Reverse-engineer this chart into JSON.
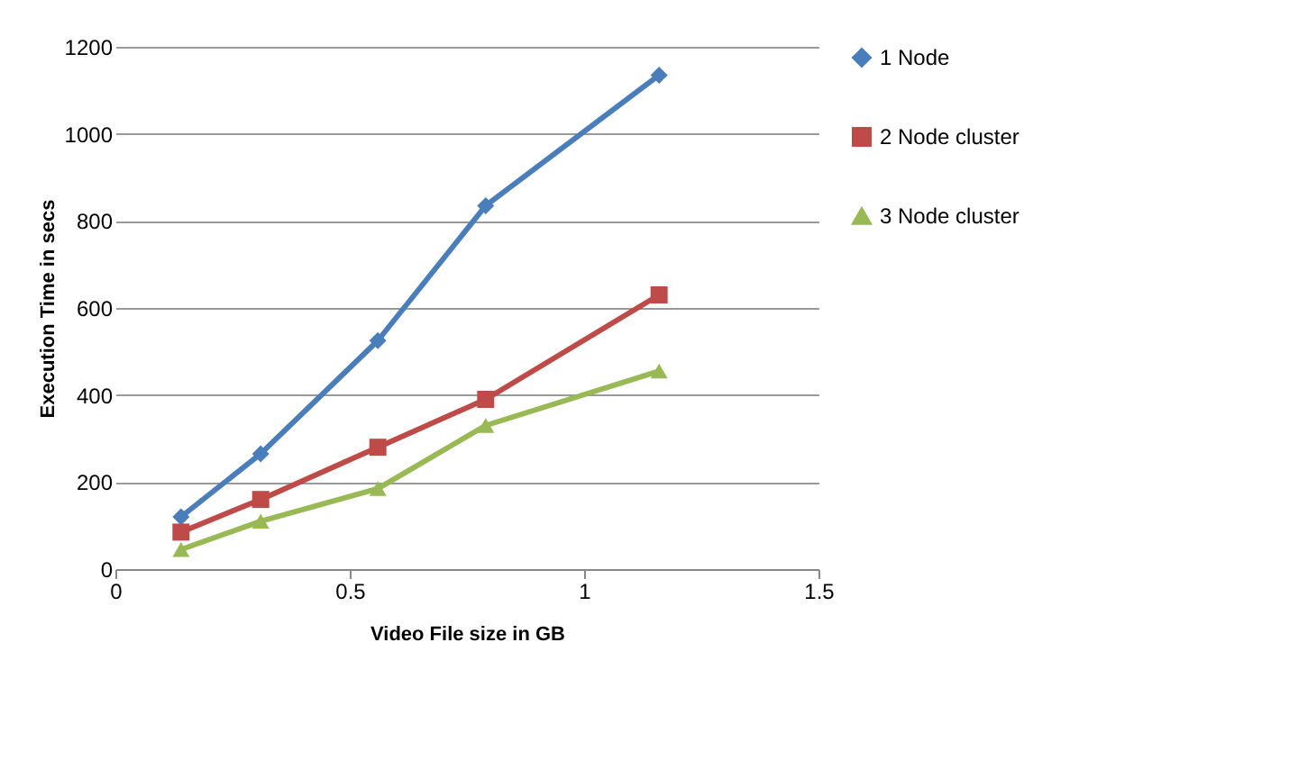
{
  "chart_data": {
    "type": "line",
    "xlabel": "Video File size in GB",
    "ylabel": "Execution Time in secs",
    "x": [
      0.14,
      0.31,
      0.56,
      0.79,
      1.16
    ],
    "series": [
      {
        "name": "1 Node",
        "color": "#4a7ebb",
        "marker": "diamond",
        "values": [
          120,
          265,
          525,
          835,
          1135
        ]
      },
      {
        "name": "2 Node cluster",
        "color": "#be4b48",
        "marker": "square",
        "values": [
          85,
          160,
          280,
          390,
          630
        ]
      },
      {
        "name": "3 Node cluster",
        "color": "#98b954",
        "marker": "triangle",
        "values": [
          45,
          110,
          185,
          330,
          455
        ]
      }
    ],
    "xlim": [
      0,
      1.5
    ],
    "xticks": [
      0,
      0.5,
      1,
      1.5
    ],
    "ylim": [
      0,
      1200
    ],
    "yticks": [
      0,
      200,
      400,
      600,
      800,
      1000,
      1200
    ],
    "grid": "y",
    "legend": "right"
  }
}
